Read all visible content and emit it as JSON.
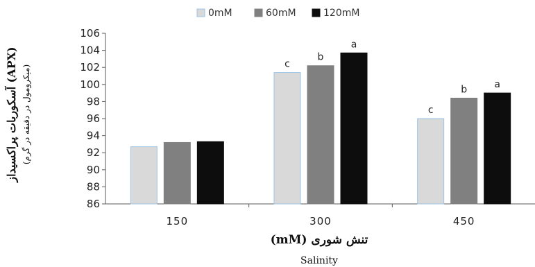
{
  "chart_data": {
    "type": "bar",
    "categories": [
      "150",
      "300",
      "450"
    ],
    "series": [
      {
        "name": "0mM",
        "color": "#d9d9d9",
        "stroke": "#9dc3e6",
        "values": [
          92.7,
          101.4,
          96.0
        ],
        "labels": [
          "",
          "c",
          "c"
        ]
      },
      {
        "name": "60mM",
        "color": "#808080",
        "stroke": "#808080",
        "values": [
          93.2,
          102.2,
          98.4
        ],
        "labels": [
          "",
          "b",
          "b"
        ]
      },
      {
        "name": "120mM",
        "color": "#0d0d0d",
        "stroke": "#0d0d0d",
        "values": [
          93.3,
          103.7,
          99.0
        ],
        "labels": [
          "",
          "a",
          "a"
        ]
      }
    ],
    "ylim": [
      86,
      106
    ],
    "yticks": [
      86,
      88,
      90,
      92,
      94,
      96,
      98,
      100,
      102,
      104,
      106
    ],
    "xlabel": "تنش شوری (mM)",
    "xlabel_en": "Salinity",
    "ylabel": "آسکوربات پراکسیداز (APX)",
    "ylabel_unit": "(میکرومول در دقیقه در گرم)",
    "legend_position": "top-center",
    "grid": false
  }
}
